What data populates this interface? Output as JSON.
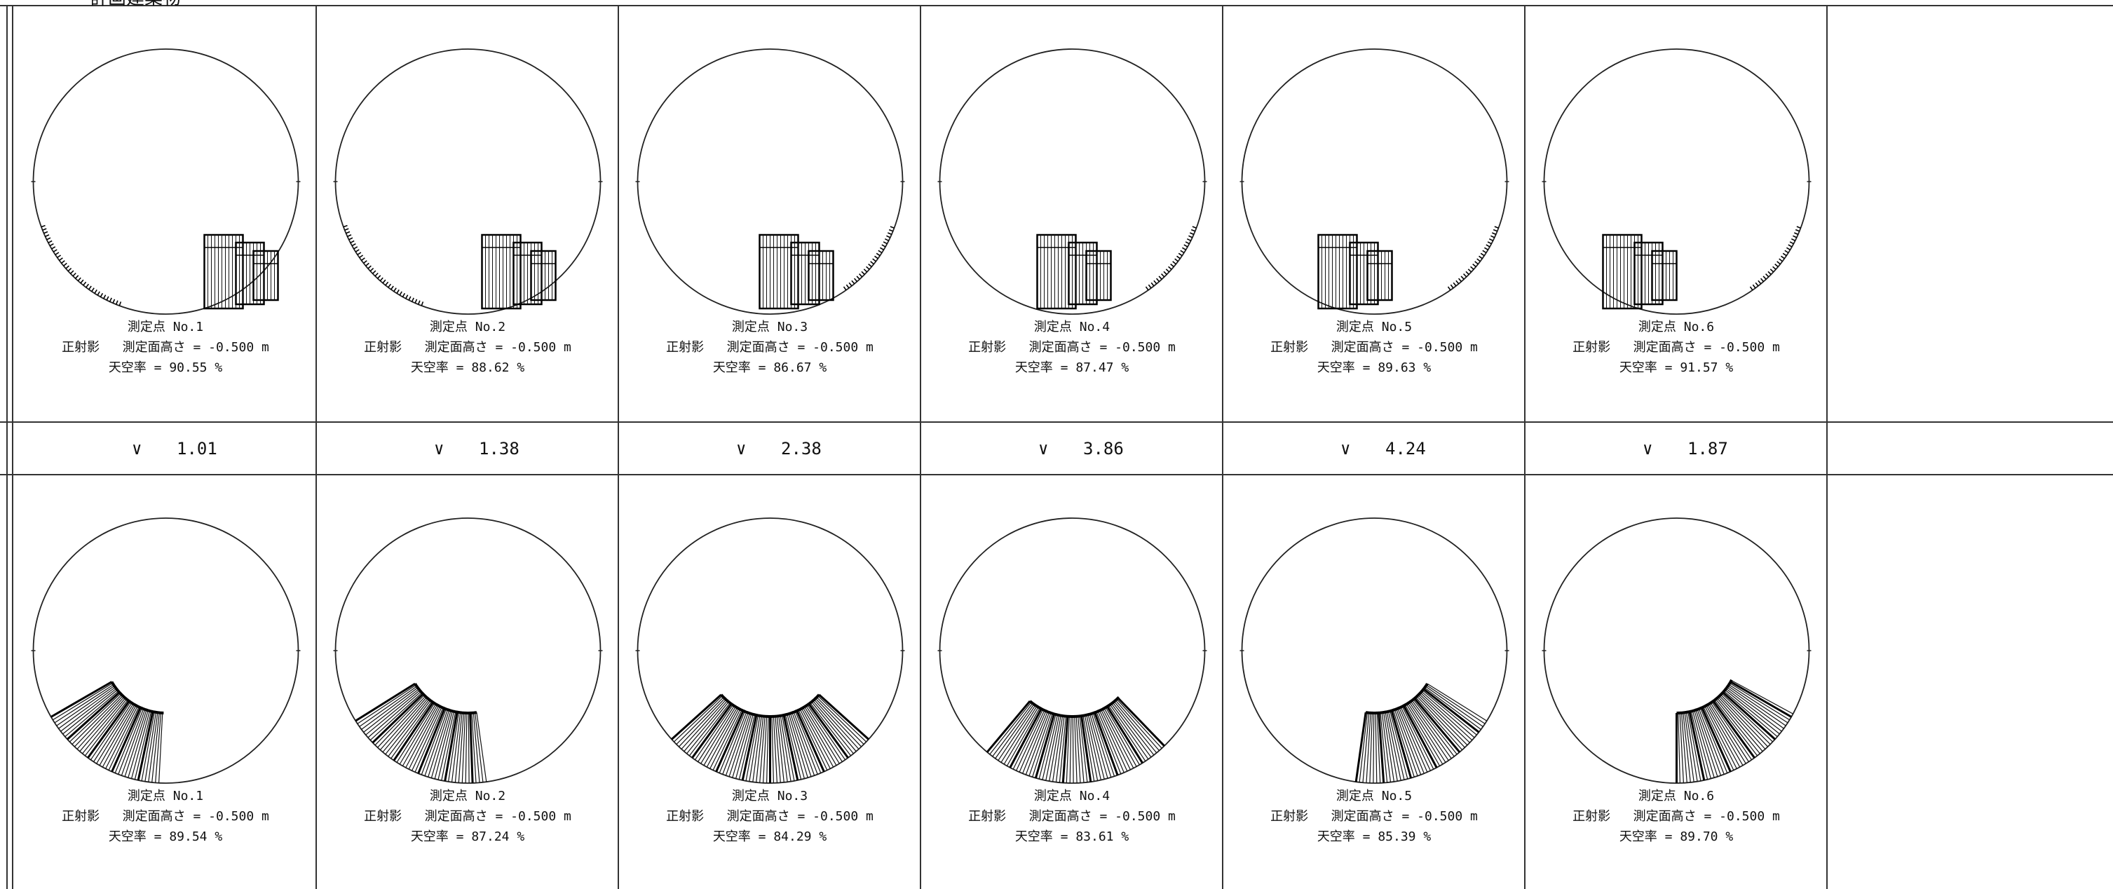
{
  "header": {
    "title": "計画建築物"
  },
  "diagram_data": {
    "caption_labels": {
      "point_prefix": "測定点",
      "projection": "正射影",
      "height_label": "測定面高さ = -0.500 m",
      "sky_ratio_label": "天空率 = ",
      "percent_unit": " %"
    },
    "top_row": [
      {
        "point": "No.1",
        "sky_ratio": "90.55"
      },
      {
        "point": "No.2",
        "sky_ratio": "88.62"
      },
      {
        "point": "No.3",
        "sky_ratio": "86.67"
      },
      {
        "point": "No.4",
        "sky_ratio": "87.47"
      },
      {
        "point": "No.5",
        "sky_ratio": "89.63"
      },
      {
        "point": "No.6",
        "sky_ratio": "91.57"
      }
    ],
    "difference_row": [
      {
        "mark": "∨",
        "value": "1.01"
      },
      {
        "mark": "∨",
        "value": "1.38"
      },
      {
        "mark": "∨",
        "value": "2.38"
      },
      {
        "mark": "∨",
        "value": "3.86"
      },
      {
        "mark": "∨",
        "value": "4.24"
      },
      {
        "mark": "∨",
        "value": "1.87"
      }
    ],
    "bottom_row": [
      {
        "point": "No.1",
        "sky_ratio": "89.54"
      },
      {
        "point": "No.2",
        "sky_ratio": "87.24"
      },
      {
        "point": "No.3",
        "sky_ratio": "84.29"
      },
      {
        "point": "No.4",
        "sky_ratio": "83.61"
      },
      {
        "point": "No.5",
        "sky_ratio": "85.39"
      },
      {
        "point": "No.6",
        "sky_ratio": "89.70"
      }
    ]
  }
}
